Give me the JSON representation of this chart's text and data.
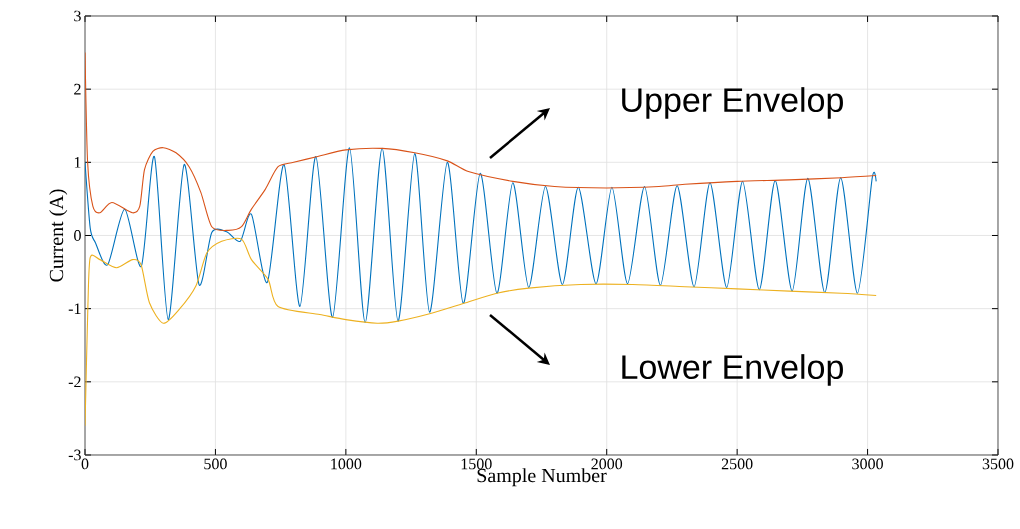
{
  "chart_data": {
    "type": "line",
    "xlabel": "Sample Number",
    "ylabel": "Current (A)",
    "xlim": [
      0,
      3500
    ],
    "ylim": [
      -3,
      3
    ],
    "xticks": [
      0,
      500,
      1000,
      1500,
      2000,
      2500,
      3000,
      3500
    ],
    "yticks": [
      -3,
      -2,
      -1,
      0,
      1,
      2,
      3
    ],
    "grid": true,
    "series": [
      {
        "color": "#0072bd",
        "x": [
          0,
          20,
          40,
          87,
          152,
          216,
          266,
          319,
          380,
          437,
          486,
          543,
          595,
          638,
          699,
          763,
          824,
          885,
          949,
          1014,
          1074,
          1139,
          1200,
          1264,
          1321,
          1389,
          1450,
          1515,
          1579,
          1640,
          1701,
          1765,
          1830,
          1891,
          1959,
          2020,
          2080,
          2145,
          2206,
          2270,
          2335,
          2396,
          2460,
          2521,
          2585,
          2646,
          2711,
          2771,
          2836,
          2897,
          2961,
          3018,
          3033
        ],
        "values": [
          1.0,
          0.1,
          -0.1,
          -0.4,
          0.36,
          -0.42,
          1.08,
          -1.15,
          0.97,
          -0.67,
          0.04,
          0.05,
          -0.08,
          0.29,
          -0.64,
          0.97,
          -0.97,
          1.08,
          -1.12,
          1.2,
          -1.19,
          1.19,
          -1.17,
          1.12,
          -1.05,
          1.0,
          -0.93,
          0.85,
          -0.79,
          0.72,
          -0.71,
          0.67,
          -0.67,
          0.66,
          -0.66,
          0.66,
          -0.66,
          0.67,
          -0.68,
          0.68,
          -0.7,
          0.72,
          -0.71,
          0.74,
          -0.74,
          0.75,
          -0.76,
          0.78,
          -0.78,
          0.79,
          -0.79,
          0.79,
          0.74
        ]
      },
      {
        "color": "#d95319",
        "x": [
          0,
          10,
          30,
          57,
          103,
          182,
          210,
          228,
          260,
          300,
          349,
          399,
          444,
          486,
          550,
          600,
          638,
          691,
          740,
          800,
          892,
          1000,
          1139,
          1264,
          1389,
          1473,
          1640,
          1800,
          2000,
          2200,
          2300,
          2500,
          2700,
          2900,
          3033
        ],
        "values": [
          2.5,
          1.0,
          0.4,
          0.31,
          0.45,
          0.31,
          0.4,
          0.9,
          1.15,
          1.2,
          1.13,
          0.94,
          0.59,
          0.12,
          0.07,
          0.12,
          0.36,
          0.63,
          0.94,
          1.0,
          1.08,
          1.17,
          1.19,
          1.13,
          1.02,
          0.87,
          0.74,
          0.67,
          0.65,
          0.67,
          0.7,
          0.74,
          0.76,
          0.79,
          0.82
        ]
      },
      {
        "color": "#edb120",
        "x": [
          0,
          11,
          20,
          57,
          121,
          182,
          215,
          247,
          300,
          361,
          425,
          467,
          524,
          600,
          638,
          702,
          740,
          900,
          1000,
          1120,
          1200,
          1321,
          1450,
          1579,
          1701,
          1900,
          2100,
          2300,
          2500,
          2700,
          2900,
          3033
        ],
        "values": [
          -2.6,
          -0.97,
          -0.3,
          -0.33,
          -0.44,
          -0.33,
          -0.4,
          -0.92,
          -1.2,
          -1.01,
          -0.69,
          -0.24,
          -0.08,
          -0.05,
          -0.33,
          -0.6,
          -0.97,
          -1.08,
          -1.15,
          -1.2,
          -1.17,
          -1.07,
          -0.93,
          -0.79,
          -0.72,
          -0.67,
          -0.67,
          -0.7,
          -0.73,
          -0.76,
          -0.79,
          -0.82
        ]
      }
    ],
    "annotations": [
      "Upper Envelop",
      "Lower Envelop"
    ]
  }
}
